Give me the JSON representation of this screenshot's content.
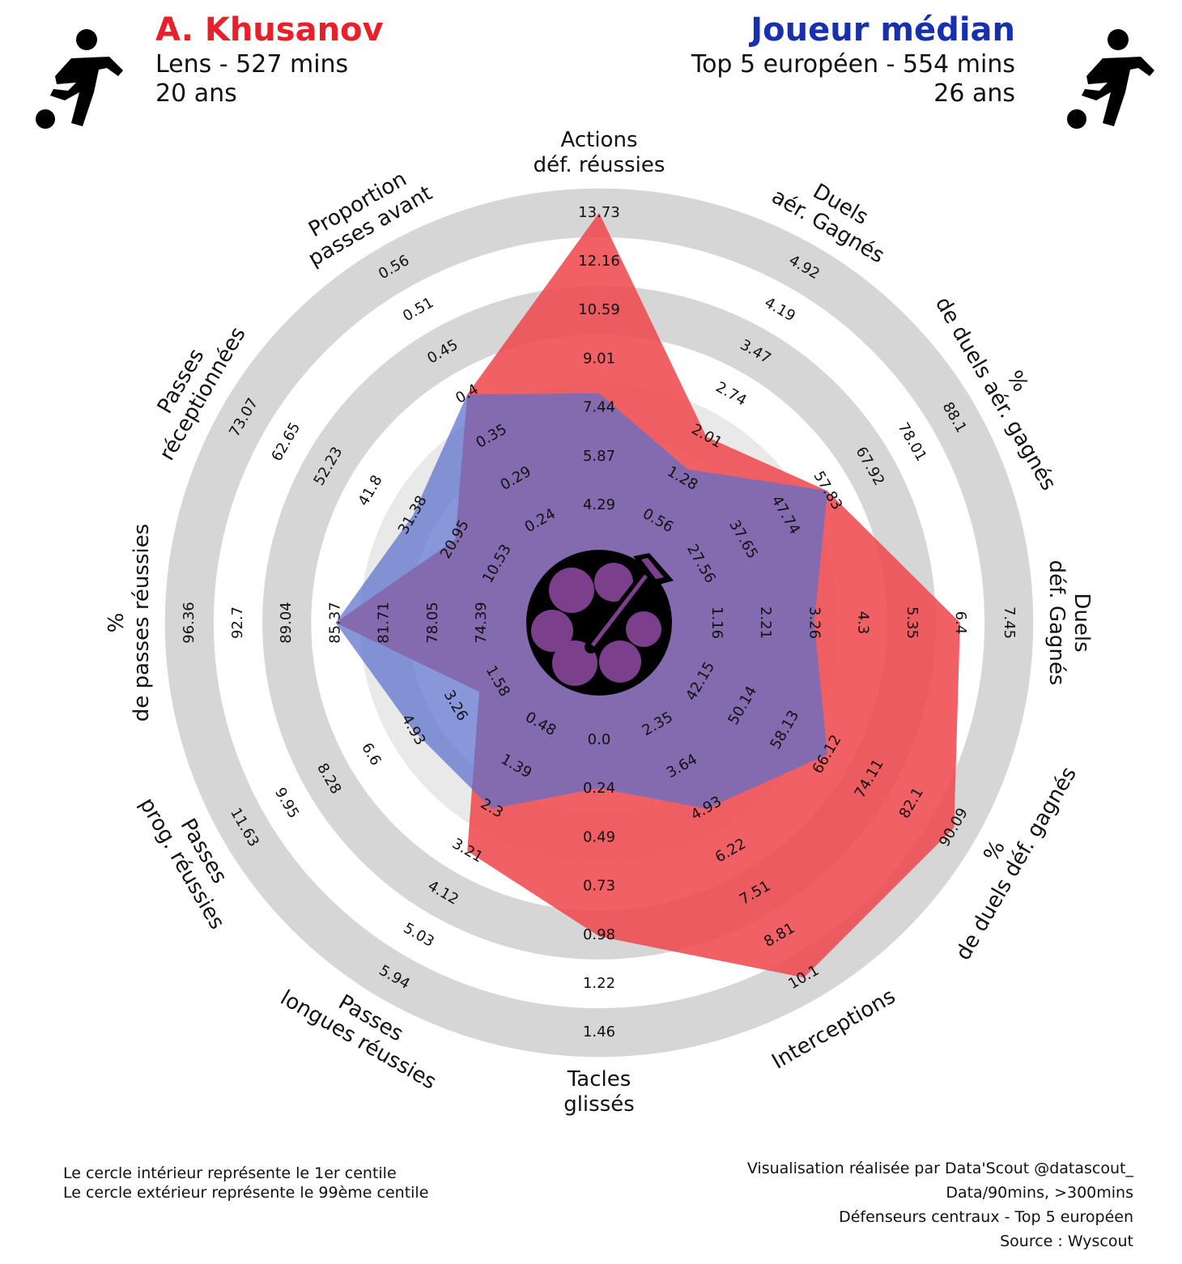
{
  "header": {
    "player": {
      "name": "A. Khusanov",
      "line1": "Lens - 527 mins",
      "line2": "20 ans",
      "color": "#e8202a",
      "icon": "footballer-icon"
    },
    "comparison": {
      "name": "Joueur médian",
      "line1": "Top 5 européen - 554 mins",
      "line2": "26 ans",
      "color": "#1730b0",
      "icon": "footballer-icon"
    }
  },
  "footer": {
    "left": [
      "Le cercle intérieur représente le 1er centile",
      "Le cercle extérieur représente le 99ème centile"
    ],
    "right": [
      "Visualisation réalisée par Data'Scout @datascout_",
      "Data/90mins, >300mins",
      "Défenseurs centraux - Top 5 européen",
      "Source : Wyscout"
    ]
  },
  "center_logo": "club-crest-arrow-icon",
  "chart_data": {
    "type": "radar",
    "colors": {
      "player": "#ef4a50",
      "comparison": "#5a6fcc",
      "rings": "#d6d6d6"
    },
    "axes": [
      {
        "label": [
          "Actions",
          "déf. réussies"
        ],
        "ticks": [
          "4.29",
          "5.87",
          "7.44",
          "9.01",
          "10.59",
          "12.16",
          "13.73"
        ]
      },
      {
        "label": [
          "Duels",
          "aér. Gagnés"
        ],
        "ticks": [
          "0.56",
          "1.28",
          "2.01",
          "2.74",
          "3.47",
          "4.19",
          "4.92"
        ]
      },
      {
        "label": [
          "%",
          "de duels aér. gagnés"
        ],
        "ticks": [
          "27.56",
          "37.65",
          "47.74",
          "57.83",
          "67.92",
          "78.01",
          "88.1"
        ]
      },
      {
        "label": [
          "Duels",
          "déf. Gagnés"
        ],
        "ticks": [
          "1.16",
          "2.21",
          "3.26",
          "4.3",
          "5.35",
          "6.4",
          "7.45"
        ]
      },
      {
        "label": [
          "%",
          "de duels déf. gagnés"
        ],
        "ticks": [
          "42.15",
          "50.14",
          "58.13",
          "66.12",
          "74.11",
          "82.1",
          "90.09"
        ]
      },
      {
        "label": [
          "Interceptions"
        ],
        "ticks": [
          "2.35",
          "3.64",
          "4.93",
          "6.22",
          "7.51",
          "8.81",
          "10.1"
        ]
      },
      {
        "label": [
          "Tacles",
          "glissés"
        ],
        "ticks": [
          "0.0",
          "0.24",
          "0.49",
          "0.73",
          "0.98",
          "1.22",
          "1.46"
        ]
      },
      {
        "label": [
          "Passes",
          "longues réussies"
        ],
        "ticks": [
          "0.48",
          "1.39",
          "2.3",
          "3.21",
          "4.12",
          "5.03",
          "5.94"
        ]
      },
      {
        "label": [
          "Passes",
          "prog. réussies"
        ],
        "ticks": [
          "1.58",
          "3.26",
          "4.93",
          "6.6",
          "8.28",
          "9.95",
          "11.63"
        ]
      },
      {
        "label": [
          "%",
          "de passes réussies"
        ],
        "ticks": [
          "74.39",
          "78.05",
          "81.71",
          "85.37",
          "89.04",
          "92.7",
          "96.36"
        ]
      },
      {
        "label": [
          "Passes",
          "réceptionnées"
        ],
        "ticks": [
          "10.53",
          "20.95",
          "31.38",
          "41.8",
          "52.23",
          "62.65",
          "73.07"
        ]
      },
      {
        "label": [
          "Proportion",
          "passes avant"
        ],
        "ticks": [
          "0.24",
          "0.29",
          "0.35",
          "0.4",
          "0.45",
          "0.51",
          "0.56"
        ]
      }
    ],
    "series": [
      {
        "name": "A. Khusanov",
        "values": [
          13.73,
          2.01,
          57.83,
          6.4,
          90.09,
          10.1,
          0.98,
          3.21,
          2.3,
          85.37,
          20.95,
          0.4
        ]
      },
      {
        "name": "Joueur médian",
        "values": [
          7.9,
          1.45,
          57.83,
          3.26,
          66.12,
          4.93,
          0.24,
          2.3,
          4.93,
          85.37,
          31.38,
          0.4
        ]
      }
    ]
  }
}
